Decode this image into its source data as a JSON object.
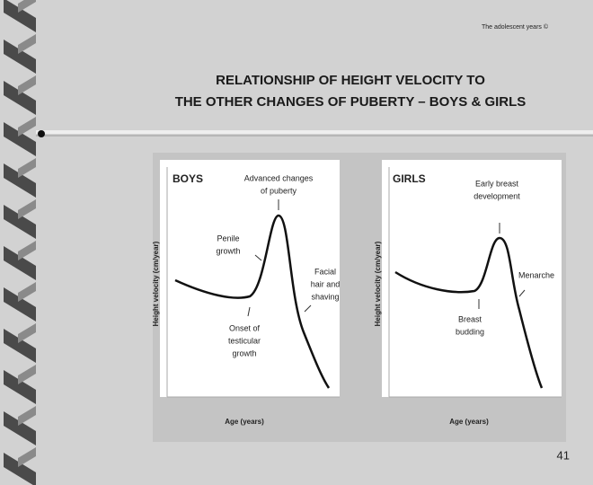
{
  "header": {
    "note": "The adolescent years ©",
    "title": [
      "RELATIONSHIP OF HEIGHT VELOCITY TO",
      "THE OTHER CHANGES OF PUBERTY – BOYS & GIRLS"
    ]
  },
  "panels": [
    {
      "label": "BOYS",
      "y_axis": "Height velocity (cm/year)",
      "x_axis": "Age (years)",
      "annotations": [
        [
          "Advanced changes",
          "of puberty"
        ],
        [
          "Penile",
          "growth"
        ],
        [
          "Facial",
          "hair and",
          "shaving"
        ],
        [
          "Onset of",
          "testicular",
          "growth"
        ]
      ]
    },
    {
      "label": "GIRLS",
      "y_axis": "Height velocity (cm/year)",
      "x_axis": "Age (years)",
      "annotations": [
        [
          "Early breast",
          "development"
        ],
        [
          "Menarche"
        ],
        [
          "Breast",
          "budding"
        ]
      ]
    }
  ],
  "page_number": "41"
}
